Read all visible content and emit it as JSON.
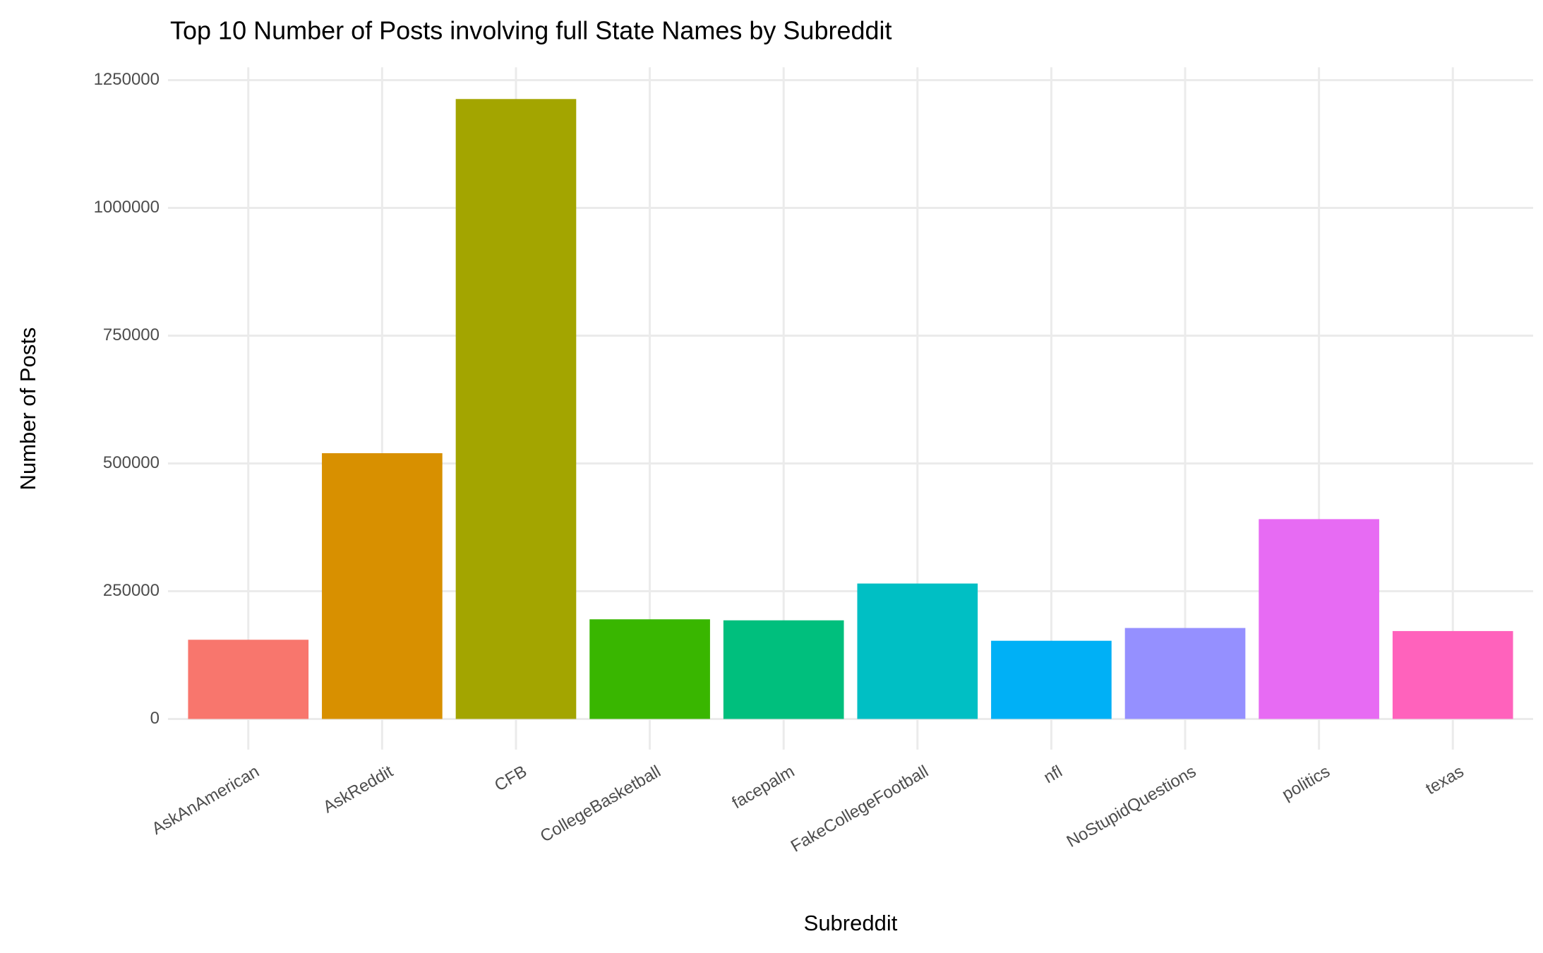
{
  "chart_data": {
    "type": "bar",
    "title": "Top 10 Number of Posts involving full State Names by Subreddit",
    "x_label": "Subreddit",
    "y_label": "Number of Posts",
    "categories": [
      "AskAnAmerican",
      "AskReddit",
      "CFB",
      "CollegeBasketball",
      "facepalm",
      "FakeCollegeFootball",
      "nfl",
      "NoStupidQuestions",
      "politics",
      "texas"
    ],
    "values": [
      155000,
      520000,
      1213000,
      195000,
      193000,
      265000,
      153000,
      178000,
      391000,
      172000
    ],
    "colors": [
      "#F8766D",
      "#D89000",
      "#A3A500",
      "#39B600",
      "#00BF7D",
      "#00BFC4",
      "#00B0F6",
      "#9590FF",
      "#E76BF3",
      "#FF62BC"
    ],
    "ylim": [
      -60000,
      1275000
    ],
    "yticks": [
      0,
      250000,
      500000,
      750000,
      1000000,
      1250000
    ],
    "grid": true
  }
}
